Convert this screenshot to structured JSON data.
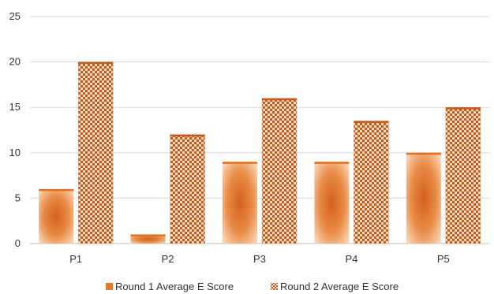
{
  "chart_data": {
    "type": "bar",
    "categories": [
      "P1",
      "P2",
      "P3",
      "P4",
      "P5"
    ],
    "series": [
      {
        "name": "Round 1  Average E Score",
        "values": [
          6,
          1,
          9,
          9,
          10
        ],
        "color": "#e07b2e"
      },
      {
        "name": "Round 2 Average E Score",
        "values": [
          20,
          12,
          16,
          13.5,
          15
        ],
        "color": "#c75a1a"
      }
    ],
    "yticks": [
      "0",
      "5",
      "10",
      "15",
      "20",
      "25"
    ],
    "ylim": [
      0,
      25
    ],
    "grid": true,
    "legend": "bottom"
  }
}
